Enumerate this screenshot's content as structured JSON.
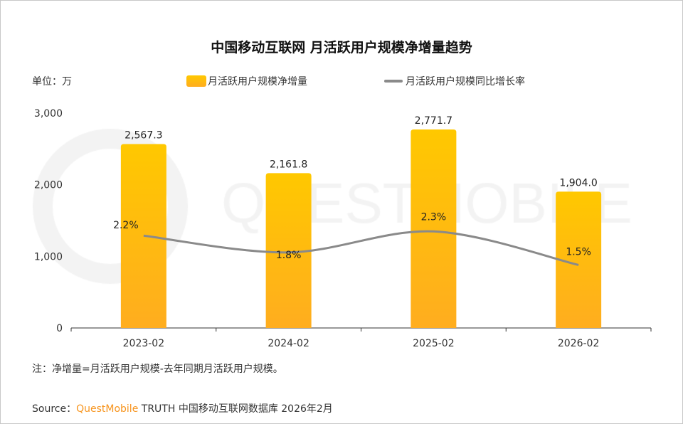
{
  "title": "中国移动互联网 月活跃用户规模净增量趋势",
  "unit_label": "单位：万",
  "note": "注：净增量=月活跃用户规模-去年同期月活跃用户规模。",
  "source": {
    "prefix": "Source：",
    "brand": "QuestMobile",
    "rest": " TRUTH 中国移动互联网数据库 2026年2月"
  },
  "watermark": "QUESTMOBILE",
  "colors": {
    "bar_top": "#ffc800",
    "bar_bottom": "#ffad1f",
    "line": "#8a8a8a",
    "brand": "#f7941d"
  },
  "chart_data": {
    "type": "bar",
    "categories": [
      "2023-02",
      "2024-02",
      "2025-02",
      "2026-02"
    ],
    "series": [
      {
        "name": "月活跃用户规模净增量",
        "type": "bar",
        "values": [
          2567.3,
          2161.8,
          2771.7,
          1904.0
        ],
        "labels": [
          "2,567.3",
          "2,161.8",
          "2,771.7",
          "1,904.0"
        ]
      },
      {
        "name": "月活跃用户规模同比增长率",
        "type": "line",
        "axis": "secondary",
        "values": [
          2.2,
          1.8,
          2.3,
          1.5
        ],
        "labels": [
          "2.2%",
          "1.8%",
          "2.3%",
          "1.5%"
        ]
      }
    ],
    "ylim": [
      0,
      3000
    ],
    "yticks": [
      "0",
      "1,000",
      "2,000",
      "3,000"
    ],
    "ytick_values": [
      0,
      1000,
      2000,
      3000
    ],
    "legend_placement": "top",
    "grid": false
  }
}
